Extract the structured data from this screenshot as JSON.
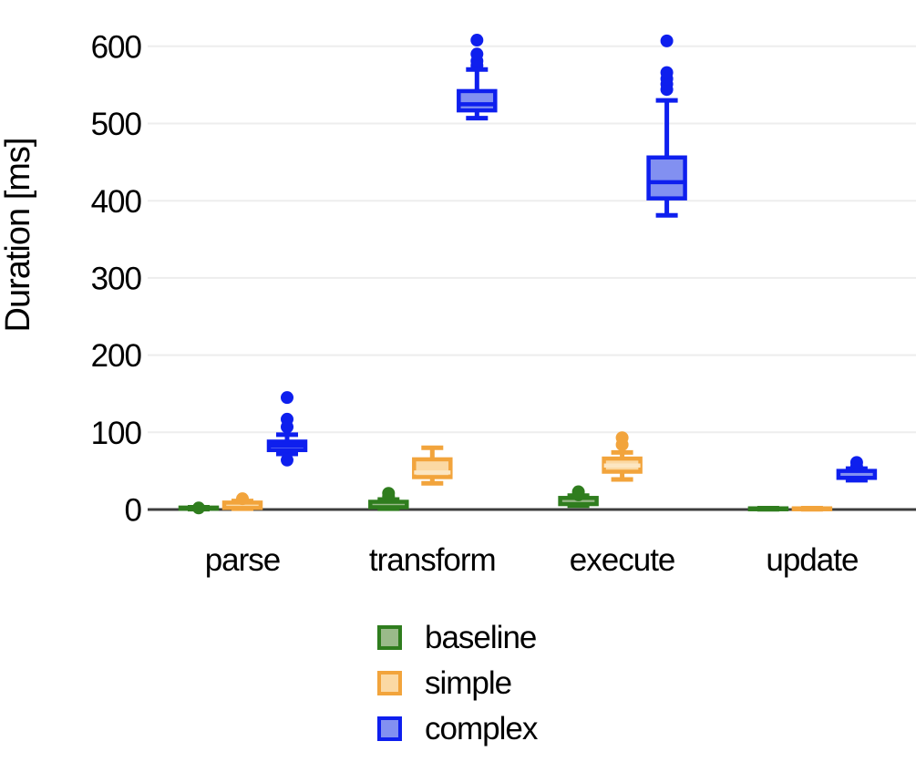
{
  "chart_data": {
    "type": "boxplot",
    "title": "",
    "xlabel": "",
    "ylabel": "Duration [ms]",
    "ylim": [
      0,
      620
    ],
    "yticks": [
      0,
      100,
      200,
      300,
      400,
      500,
      600
    ],
    "grid": "horizontal",
    "legend_position": "bottom",
    "background_color": "#ffffff",
    "axis_color": "#3d3d3d",
    "grid_color": "#ededed",
    "text_color": "#000000",
    "categories": [
      "parse",
      "transform",
      "execute",
      "update"
    ],
    "series": [
      {
        "name": "baseline",
        "stroke": "#2f7d1e",
        "fill": "#9aba8a",
        "median_color": "#2f7d1e",
        "boxes": [
          {
            "min": 0.5,
            "q1": 1,
            "med": 1.5,
            "q3": 2.5,
            "max": 3,
            "outliers": [
              2
            ]
          },
          {
            "min": 1,
            "q1": 3,
            "med": 6,
            "q3": 10,
            "max": 13,
            "outliers": [
              17,
              21
            ]
          },
          {
            "min": 5,
            "q1": 7,
            "med": 10,
            "q3": 15,
            "max": 18,
            "outliers": [
              19,
              23
            ]
          },
          {
            "min": 0.3,
            "q1": 0.6,
            "med": 1,
            "q3": 1.5,
            "max": 1.8,
            "outliers": []
          }
        ]
      },
      {
        "name": "simple",
        "stroke": "#f2a43c",
        "fill": "#fbd9a4",
        "median_color": "#fce6c2",
        "boxes": [
          {
            "min": 1,
            "q1": 2,
            "med": 4,
            "q3": 9,
            "max": 11,
            "outliers": [
              14
            ]
          },
          {
            "min": 34,
            "q1": 42,
            "med": 48,
            "q3": 65,
            "max": 80,
            "outliers": []
          },
          {
            "min": 39,
            "q1": 49,
            "med": 57,
            "q3": 66,
            "max": 74,
            "outliers": [
              84,
              93
            ]
          },
          {
            "min": 0.3,
            "q1": 0.6,
            "med": 1,
            "q3": 1.5,
            "max": 1.8,
            "outliers": []
          }
        ]
      },
      {
        "name": "complex",
        "stroke": "#0e1fee",
        "fill": "#8290f1",
        "median_color": "#0e1fee",
        "boxes": [
          {
            "min": 72,
            "q1": 77,
            "med": 83,
            "q3": 88,
            "max": 97,
            "outliers": [
              64,
              107,
              117,
              145
            ]
          },
          {
            "min": 507,
            "q1": 517,
            "med": 525,
            "q3": 542,
            "max": 570,
            "outliers": [
              575,
              581,
              590,
              608
            ]
          },
          {
            "min": 381,
            "q1": 403,
            "med": 424,
            "q3": 456,
            "max": 530,
            "outliers": [
              544,
              551,
              558,
              566,
              607
            ]
          },
          {
            "min": 38,
            "q1": 41,
            "med": 46,
            "q3": 50,
            "max": 53,
            "outliers": [
              56,
              61
            ]
          }
        ]
      }
    ]
  }
}
